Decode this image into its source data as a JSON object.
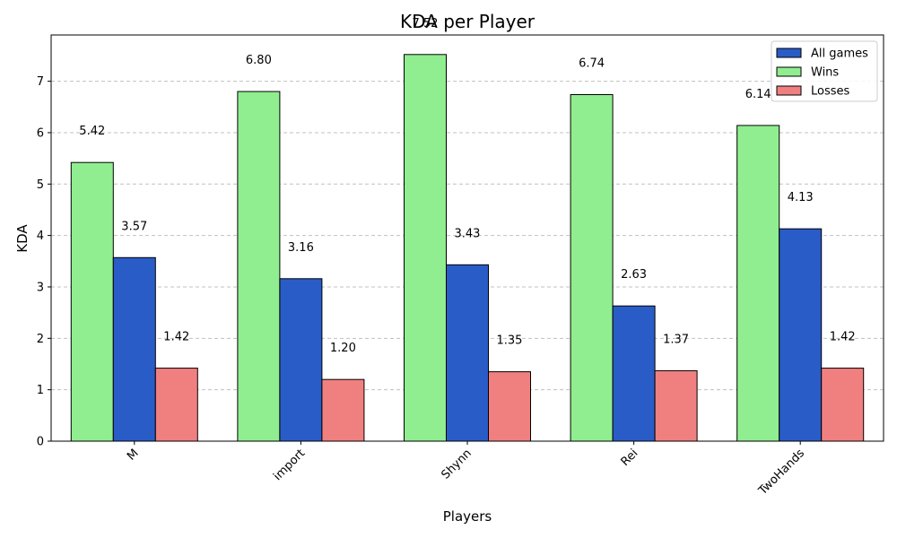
{
  "chart_data": {
    "type": "bar",
    "title": "KDA per Player",
    "xlabel": "Players",
    "ylabel": "KDA",
    "categories": [
      "M",
      "import",
      "Shynn",
      "Rei",
      "TwoHands"
    ],
    "ylim": [
      0,
      7.9
    ],
    "yticks": [
      0,
      1,
      2,
      3,
      4,
      5,
      6,
      7
    ],
    "grid": "horizontal dashed",
    "legend_position": "top-right",
    "draw_order": [
      "Wins",
      "All games",
      "Losses"
    ],
    "series": [
      {
        "name": "All games",
        "color": "#2a5cc7",
        "values": [
          3.57,
          3.16,
          3.43,
          2.63,
          4.13
        ],
        "labels": [
          "3.57",
          "3.16",
          "3.43",
          "2.63",
          "4.13"
        ]
      },
      {
        "name": "Wins",
        "color": "#90ee90",
        "values": [
          5.42,
          6.8,
          7.52,
          6.74,
          6.14
        ],
        "labels": [
          "5.42",
          "6.80",
          "7.52",
          "6.74",
          "6.14"
        ]
      },
      {
        "name": "Losses",
        "color": "#f08080",
        "values": [
          1.42,
          1.2,
          1.35,
          1.37,
          1.42
        ],
        "labels": [
          "1.42",
          "1.20",
          "1.35",
          "1.37",
          "1.42"
        ]
      }
    ]
  }
}
